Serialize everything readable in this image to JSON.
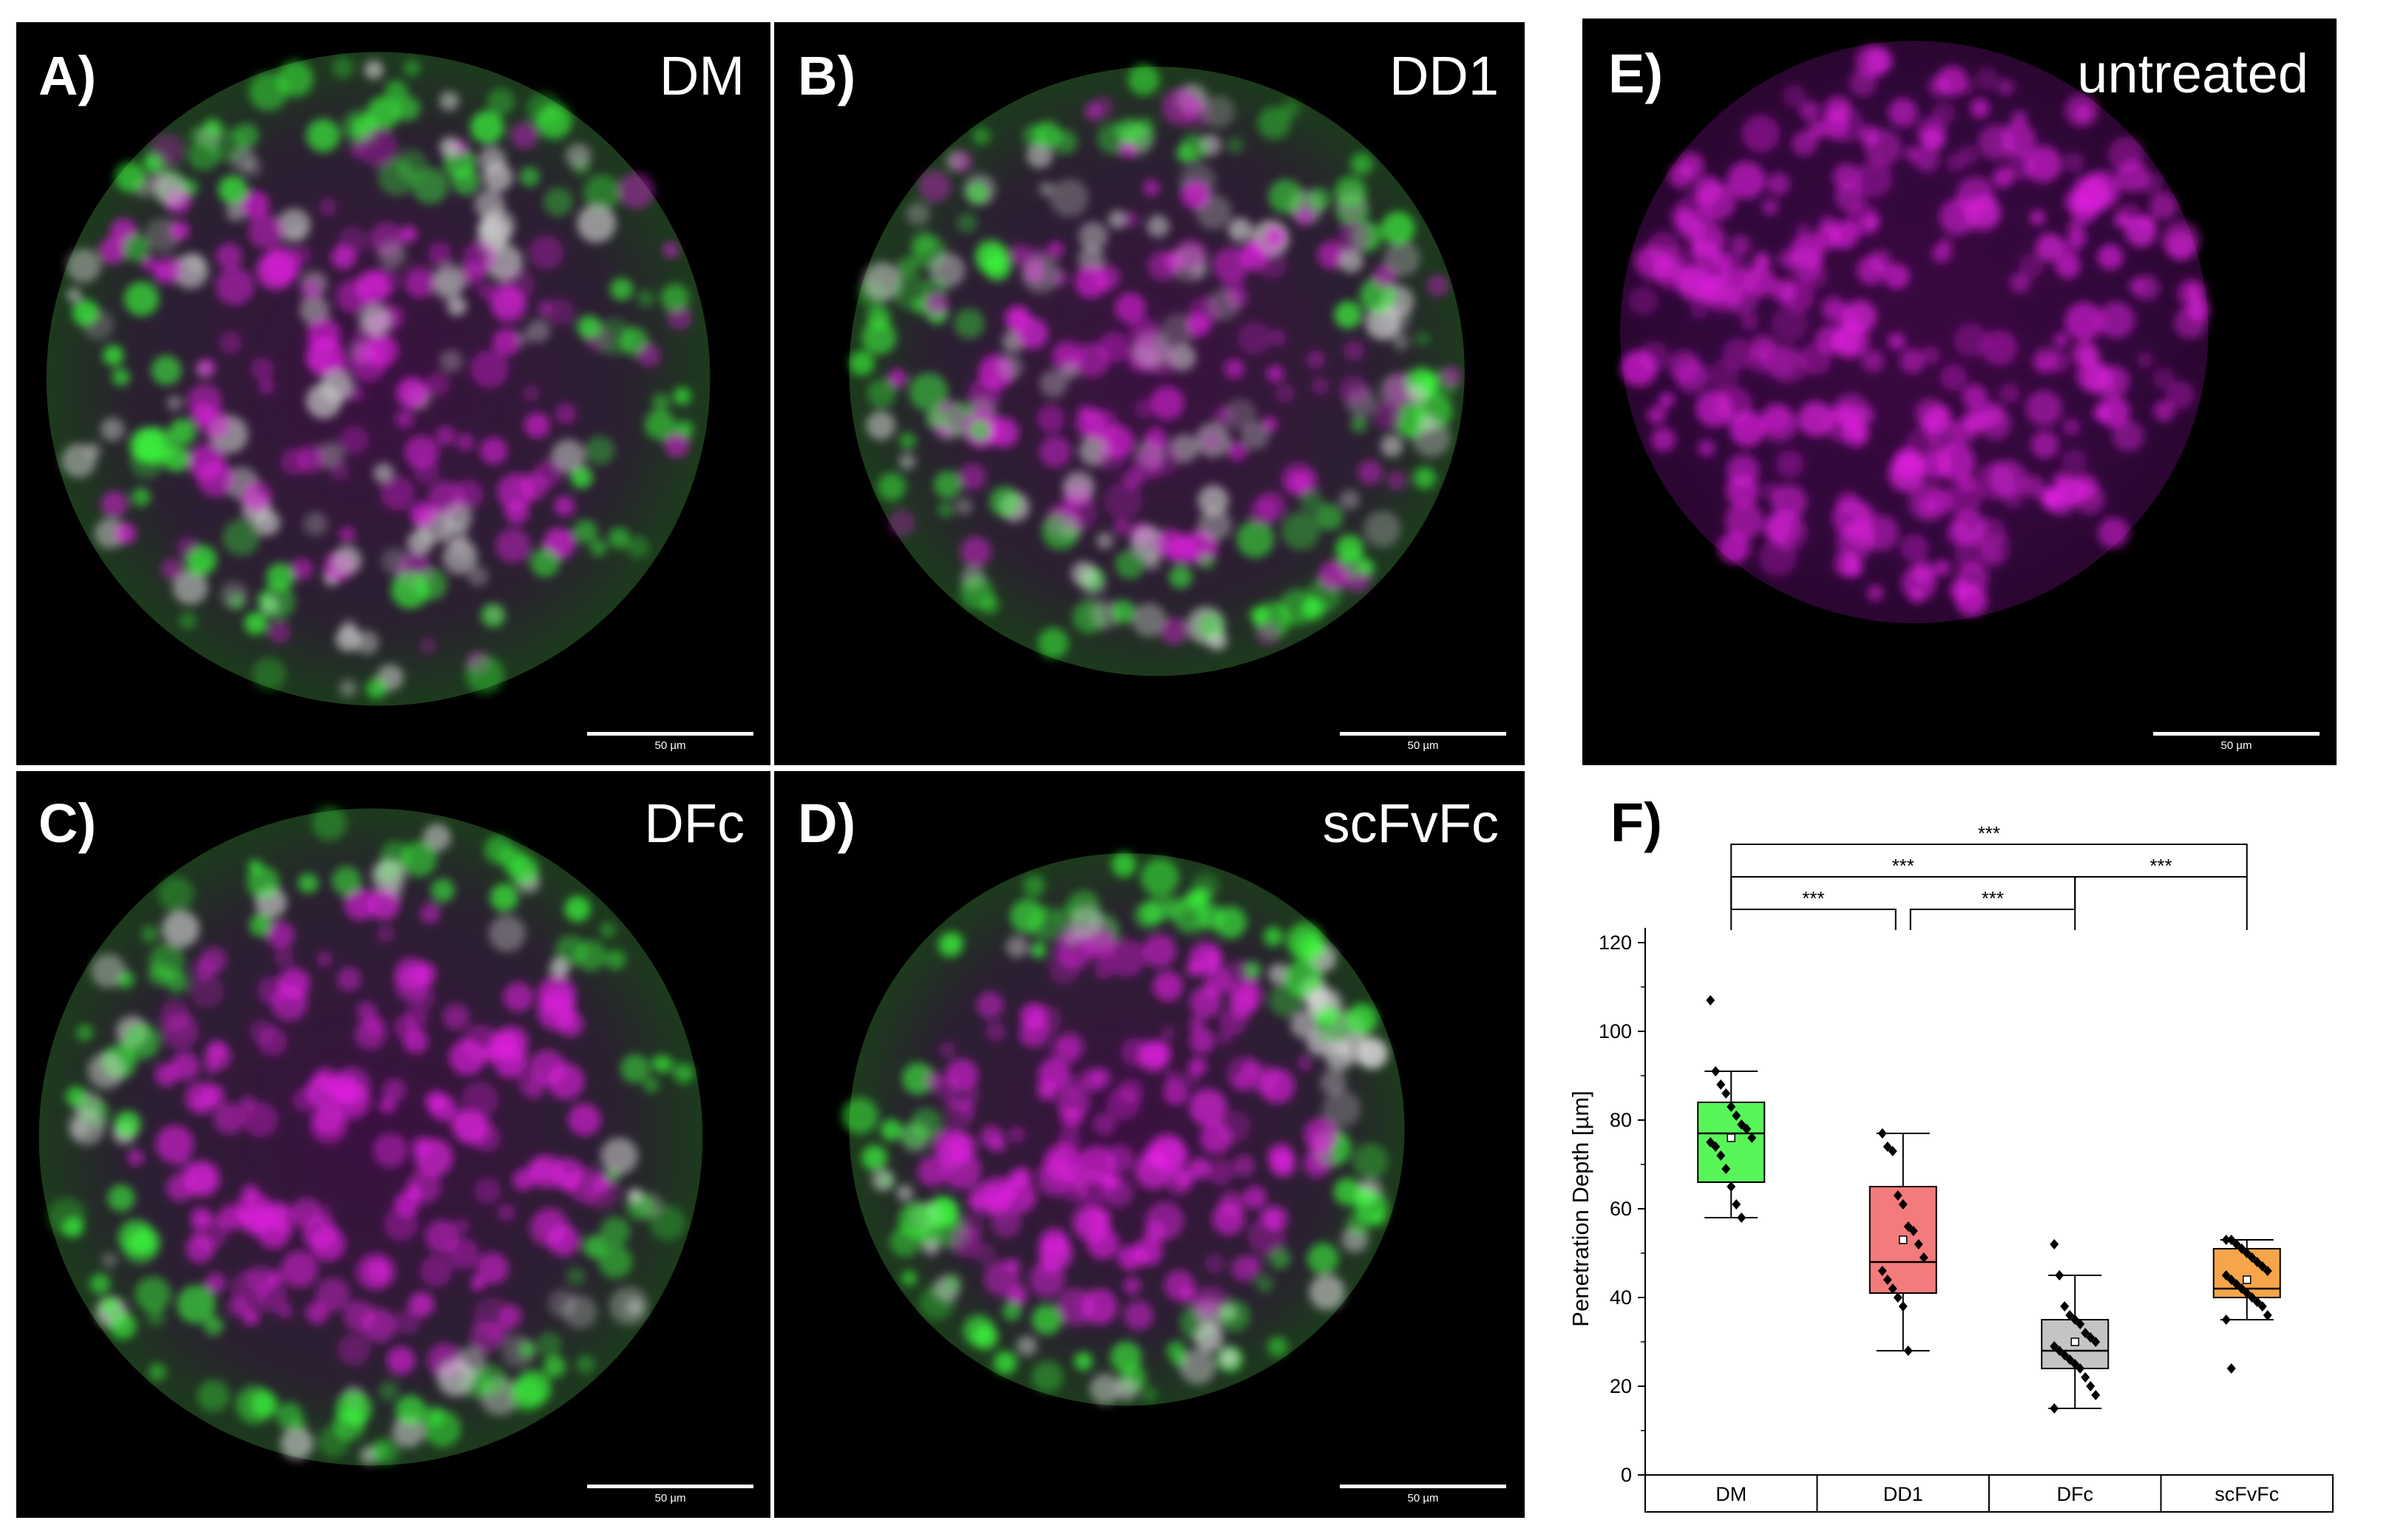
{
  "panels": [
    {
      "id": "A",
      "label": "A)",
      "condition": "DM",
      "scale": "50 µm",
      "dominant": "mixed"
    },
    {
      "id": "B",
      "label": "B)",
      "condition": "DD1",
      "scale": "50 µm",
      "dominant": "mixed"
    },
    {
      "id": "C",
      "label": "C)",
      "condition": "DFc",
      "scale": "50 µm",
      "dominant": "green-rim"
    },
    {
      "id": "D",
      "label": "D)",
      "condition": "scFvFc",
      "scale": "50 µm",
      "dominant": "green-rim"
    },
    {
      "id": "E",
      "label": "E)",
      "condition": "untreated",
      "scale": "50 µm",
      "dominant": "magenta"
    }
  ],
  "panel_F_label": "F)",
  "colors": {
    "green": "#3cff3c",
    "magenta": "#e020e0",
    "box_DM": "#58f558",
    "box_DD1": "#f47b7b",
    "box_DFc": "#c4c4c4",
    "box_scFvFc": "#f6a54a"
  },
  "chart_data": {
    "type": "box",
    "title": "",
    "xlabel": "",
    "ylabel": "Penetration Depth [µm]",
    "ylim": [
      0,
      120
    ],
    "yticks": [
      "0",
      "20",
      "40",
      "60",
      "80",
      "100",
      "120"
    ],
    "categories": [
      "DM",
      "DD1",
      "DFc",
      "scFvFc"
    ],
    "boxes": [
      {
        "name": "DM",
        "whisker_low": 58,
        "q1": 66,
        "median": 77,
        "mean": 76,
        "q3": 84,
        "whisker_high": 91,
        "points": [
          107,
          91,
          88,
          86,
          83,
          81,
          79,
          78,
          76,
          75,
          74,
          72,
          69,
          65,
          61,
          58
        ]
      },
      {
        "name": "DD1",
        "whisker_low": 28,
        "q1": 41,
        "median": 48,
        "mean": 53,
        "q3": 65,
        "whisker_high": 77,
        "points": [
          77,
          74,
          73,
          63,
          61,
          56,
          55,
          52,
          49,
          46,
          44,
          42,
          40,
          38,
          28
        ]
      },
      {
        "name": "DFc",
        "whisker_low": 15,
        "q1": 24,
        "median": 28,
        "mean": 30,
        "q3": 35,
        "whisker_high": 45,
        "points": [
          52,
          45,
          38,
          36,
          35,
          34,
          32,
          31,
          30,
          29,
          28,
          27,
          26,
          25,
          24,
          22,
          20,
          18,
          15
        ]
      },
      {
        "name": "scFvFc",
        "whisker_low": 35,
        "q1": 40,
        "median": 42,
        "mean": 44,
        "q3": 51,
        "whisker_high": 53,
        "points": [
          53,
          53,
          52,
          51,
          50,
          49,
          48,
          47,
          46,
          45,
          44,
          43,
          42,
          41,
          40,
          39,
          38,
          36,
          35,
          24
        ]
      }
    ],
    "significance": [
      {
        "from": "DM",
        "to": "DD1",
        "label": "***"
      },
      {
        "from": "DD1",
        "to": "DFc",
        "label": "***"
      },
      {
        "from": "DM",
        "to": "DFc",
        "label": "***"
      },
      {
        "from": "DFc",
        "to": "scFvFc",
        "label": "***"
      },
      {
        "from": "DM",
        "to": "scFvFc",
        "label": "***"
      }
    ]
  }
}
